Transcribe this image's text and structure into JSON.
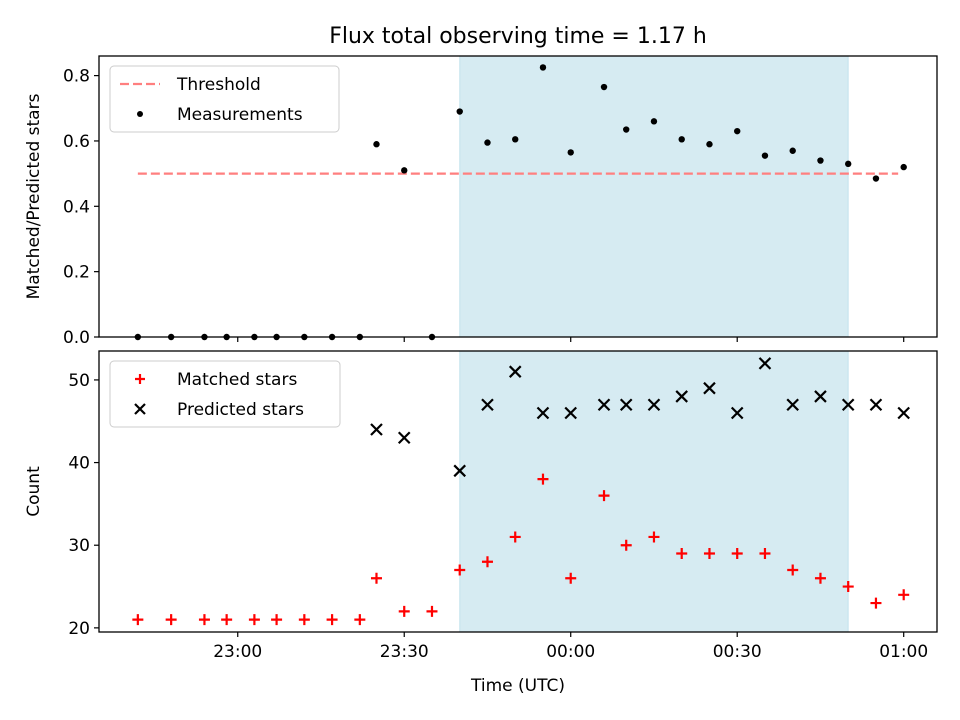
{
  "title": "Flux total observing time = 1.17 h",
  "colors": {
    "threshold": "#ff7f7f",
    "measurement": "#000000",
    "matched": "#ff0000",
    "predicted": "#000000",
    "shade": "#add8e6"
  },
  "chart_data": [
    {
      "type": "scatter",
      "ylabel": "Matched/Predicted stars",
      "ylim": [
        0,
        0.86
      ],
      "yticks": [
        0.0,
        0.2,
        0.4,
        0.6,
        0.8
      ],
      "yticklabels": [
        "0.0",
        "0.2",
        "0.4",
        "0.6",
        "0.8"
      ],
      "shaded_span": [
        "23:40",
        "00:50"
      ],
      "legend": [
        "Threshold",
        "Measurements"
      ],
      "legend_position": "top-left",
      "threshold": {
        "name": "Threshold",
        "y": 0.5,
        "x_range": [
          "22:42",
          "00:59"
        ]
      },
      "series": [
        {
          "name": "Measurements",
          "x": [
            "22:42",
            "22:48",
            "22:54",
            "22:58",
            "23:03",
            "23:07",
            "23:12",
            "23:17",
            "23:22",
            "23:25",
            "23:30",
            "23:35",
            "23:40",
            "23:45",
            "23:50",
            "23:55",
            "00:00",
            "00:06",
            "00:10",
            "00:15",
            "00:20",
            "00:25",
            "00:30",
            "00:35",
            "00:40",
            "00:45",
            "00:50",
            "00:55",
            "01:00"
          ],
          "y": [
            0,
            0,
            0,
            0,
            0,
            0,
            0,
            0,
            0,
            0.59,
            0.51,
            0,
            0.69,
            0.595,
            0.605,
            0.825,
            0.565,
            0.765,
            0.635,
            0.66,
            0.605,
            0.59,
            0.63,
            0.555,
            0.57,
            0.54,
            0.53,
            0.485,
            0.52
          ]
        }
      ]
    },
    {
      "type": "scatter",
      "ylabel": "Count",
      "xlabel": "Time (UTC)",
      "ylim": [
        19.5,
        53.5
      ],
      "yticks": [
        20,
        30,
        40,
        50
      ],
      "yticklabels": [
        "20",
        "30",
        "40",
        "50"
      ],
      "xticks": [
        "23:00",
        "23:30",
        "00:00",
        "00:30",
        "01:00"
      ],
      "xticklabels": [
        "23:00",
        "23:30",
        "00:00",
        "00:30",
        "01:00"
      ],
      "shaded_span": [
        "23:40",
        "00:50"
      ],
      "legend": [
        "Matched stars",
        "Predicted stars"
      ],
      "legend_position": "top-left",
      "series": [
        {
          "name": "Matched stars",
          "x": [
            "22:42",
            "22:48",
            "22:54",
            "22:58",
            "23:03",
            "23:07",
            "23:12",
            "23:17",
            "23:22",
            "23:25",
            "23:30",
            "23:35",
            "23:40",
            "23:45",
            "23:50",
            "23:55",
            "00:00",
            "00:06",
            "00:10",
            "00:15",
            "00:20",
            "00:25",
            "00:30",
            "00:35",
            "00:40",
            "00:45",
            "00:50",
            "00:55",
            "01:00"
          ],
          "y": [
            21,
            21,
            21,
            21,
            21,
            21,
            21,
            21,
            21,
            26,
            22,
            22,
            27,
            28,
            31,
            38,
            26,
            36,
            30,
            31,
            29,
            29,
            29,
            29,
            27,
            26,
            25,
            23,
            24
          ]
        },
        {
          "name": "Predicted stars",
          "x": [
            "23:25",
            "23:30",
            "23:40",
            "23:45",
            "23:50",
            "23:55",
            "00:00",
            "00:06",
            "00:10",
            "00:15",
            "00:20",
            "00:25",
            "00:30",
            "00:35",
            "00:40",
            "00:45",
            "00:50",
            "00:55",
            "01:00"
          ],
          "y": [
            44,
            43,
            39,
            47,
            51,
            46,
            46,
            47,
            47,
            47,
            48,
            49,
            46,
            52,
            47,
            48,
            47,
            47,
            46
          ]
        }
      ]
    }
  ]
}
